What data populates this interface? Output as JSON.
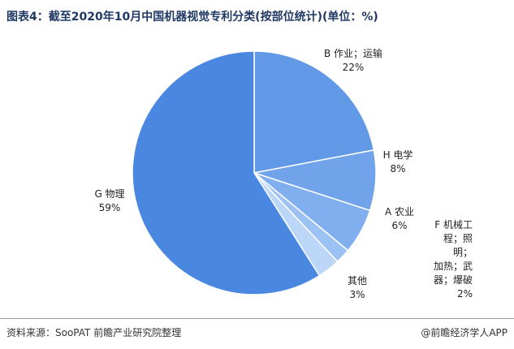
{
  "chart_data": {
    "type": "pie",
    "title": "图表4：截至2020年10月中国机器视觉专利分类(按部位统计)(单位：%)",
    "categories": [
      "B 作业；运输",
      "H 电学",
      "A 农业",
      "F 机械工程；照明；\n加热；武器；爆破",
      "其他",
      "G 物理"
    ],
    "values": [
      22,
      8,
      6,
      2,
      3,
      59
    ],
    "value_labels": [
      "22%",
      "8%",
      "6%",
      "2%",
      "3%",
      "59%"
    ],
    "colors": [
      "#6199e7",
      "#70a3ea",
      "#80aeee",
      "#9cc2f3",
      "#bcd6f7",
      "#4a87e1"
    ]
  },
  "footer": {
    "source": "资料来源：SooPAT 前瞻产业研究院整理",
    "brand": "@前瞻经济学人APP"
  }
}
